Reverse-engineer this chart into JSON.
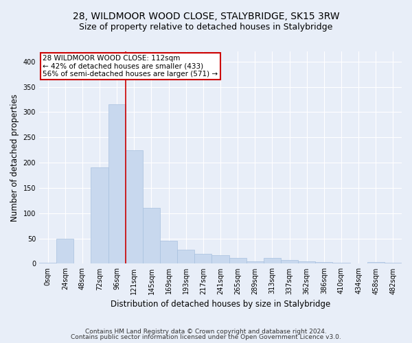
{
  "title1": "28, WILDMOOR WOOD CLOSE, STALYBRIDGE, SK15 3RW",
  "title2": "Size of property relative to detached houses in Stalybridge",
  "xlabel": "Distribution of detached houses by size in Stalybridge",
  "ylabel": "Number of detached properties",
  "bar_color": "#c8d8ee",
  "bar_edge_color": "#a8c0de",
  "background_color": "#e8eef8",
  "grid_color": "#ffffff",
  "categories": [
    "0sqm",
    "24sqm",
    "48sqm",
    "72sqm",
    "96sqm",
    "121sqm",
    "145sqm",
    "169sqm",
    "193sqm",
    "217sqm",
    "241sqm",
    "265sqm",
    "289sqm",
    "313sqm",
    "337sqm",
    "362sqm",
    "386sqm",
    "410sqm",
    "434sqm",
    "458sqm",
    "482sqm"
  ],
  "bar_heights": [
    2,
    50,
    0,
    190,
    315,
    225,
    110,
    45,
    28,
    20,
    17,
    12,
    5,
    12,
    8,
    5,
    3,
    2,
    0,
    3,
    2
  ],
  "ylim": [
    0,
    420
  ],
  "yticks": [
    0,
    50,
    100,
    150,
    200,
    250,
    300,
    350,
    400
  ],
  "property_line_color": "#cc0000",
  "annotation_text": "28 WILDMOOR WOOD CLOSE: 112sqm\n← 42% of detached houses are smaller (433)\n56% of semi-detached houses are larger (571) →",
  "annotation_box_color": "#ffffff",
  "annotation_box_edge_color": "#cc0000",
  "footer1": "Contains HM Land Registry data © Crown copyright and database right 2024.",
  "footer2": "Contains public sector information licensed under the Open Government Licence v3.0.",
  "title1_fontsize": 10,
  "title2_fontsize": 9,
  "xlabel_fontsize": 8.5,
  "ylabel_fontsize": 8.5,
  "annotation_fontsize": 7.5,
  "footer_fontsize": 6.5,
  "tick_fontsize": 7
}
